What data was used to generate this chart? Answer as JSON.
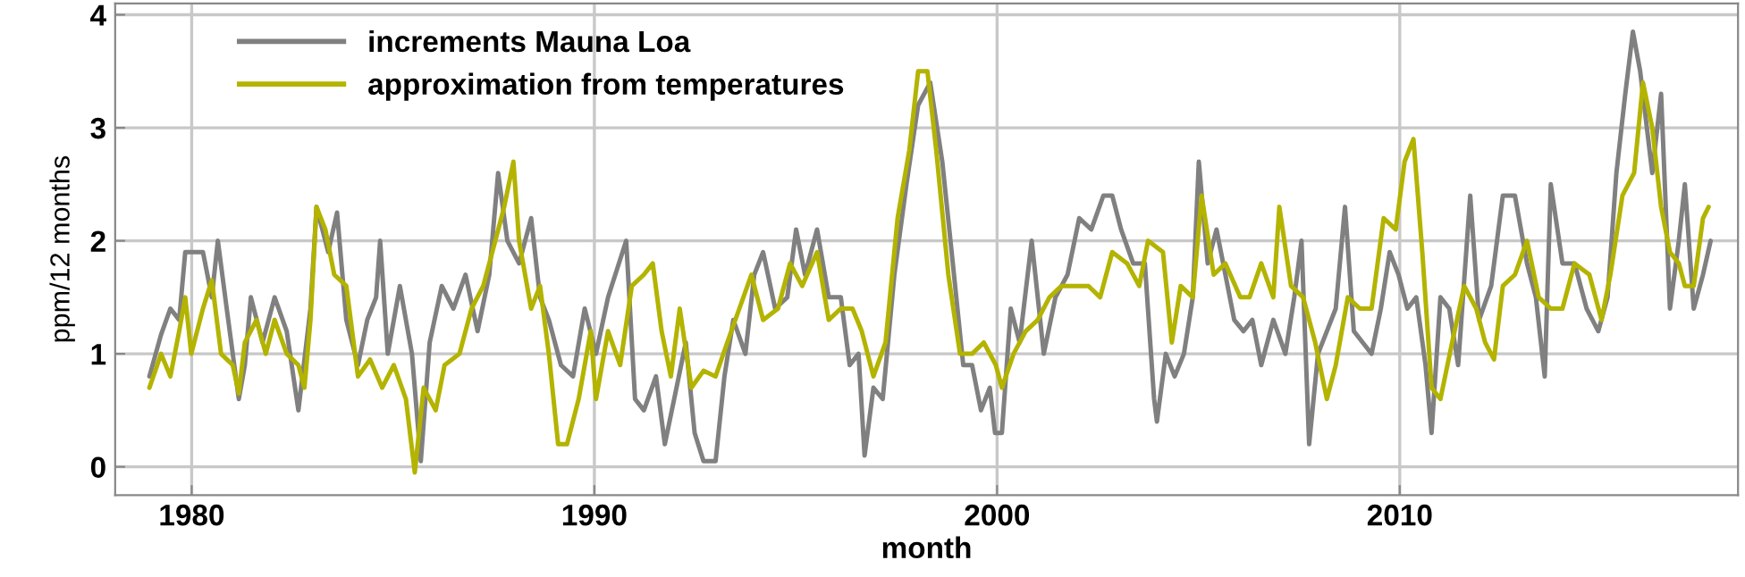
{
  "chart_data": {
    "type": "line",
    "xlabel": "month",
    "ylabel": "ppm/12 months",
    "xlim": [
      1978.1,
      2018.4
    ],
    "xticks": [
      1980,
      1990,
      2000,
      2010
    ],
    "ylim": [
      -0.25,
      4.1
    ],
    "yticks": [
      0,
      1,
      2,
      3,
      4
    ],
    "grid": true,
    "legend": "top left",
    "marker": "none",
    "line_style": "solid",
    "series": [
      {
        "name": "increments Mauna Loa",
        "color": "#808080",
        "x": [
          1978.95,
          1979.24,
          1979.47,
          1979.69,
          1979.84,
          1980.28,
          1980.5,
          1980.65,
          1980.87,
          1981.17,
          1981.32,
          1981.47,
          1981.76,
          1982.06,
          1982.36,
          1982.65,
          1982.95,
          1983.1,
          1983.39,
          1983.61,
          1983.84,
          1984.13,
          1984.36,
          1984.58,
          1984.68,
          1984.87,
          1985.17,
          1985.47,
          1985.69,
          1985.91,
          1986.21,
          1986.5,
          1986.8,
          1987.1,
          1987.39,
          1987.61,
          1987.84,
          1988.13,
          1988.43,
          1988.65,
          1988.87,
          1989.17,
          1989.47,
          1989.76,
          1990.04,
          1990.34,
          1990.79,
          1991.01,
          1991.23,
          1991.53,
          1991.75,
          1992.04,
          1992.27,
          1992.49,
          1992.71,
          1993.01,
          1993.23,
          1993.45,
          1993.75,
          1993.97,
          1994.19,
          1994.49,
          1994.79,
          1995.01,
          1995.23,
          1995.53,
          1995.82,
          1996.12,
          1996.34,
          1996.56,
          1996.71,
          1996.93,
          1997.16,
          1997.45,
          1997.75,
          1998.04,
          1998.34,
          1998.64,
          1998.93,
          1999.16,
          1999.38,
          1999.6,
          1999.82,
          1999.95,
          2000.12,
          2000.34,
          2000.56,
          2000.86,
          2001.16,
          2001.45,
          2001.75,
          2002.04,
          2002.34,
          2002.64,
          2002.86,
          2003.08,
          2003.38,
          2003.67,
          2003.9,
          2003.97,
          2004.19,
          2004.41,
          2004.64,
          2004.86,
          2005.01,
          2005.23,
          2005.45,
          2005.67,
          2005.89,
          2006.12,
          2006.34,
          2006.56,
          2006.86,
          2007.16,
          2007.38,
          2007.56,
          2007.75,
          2007.97,
          2008.19,
          2008.41,
          2008.64,
          2008.86,
          2009.08,
          2009.3,
          2009.53,
          2009.75,
          2009.97,
          2010.19,
          2010.41,
          2010.64,
          2010.79,
          2011.01,
          2011.23,
          2011.45,
          2011.75,
          2011.97,
          2012.27,
          2012.56,
          2012.86,
          2013.16,
          2013.38,
          2013.6,
          2013.75,
          2014.04,
          2014.34,
          2014.64,
          2014.93,
          2015.16,
          2015.38,
          2015.6,
          2015.79,
          2015.97,
          2016.27,
          2016.49,
          2016.71,
          2016.93,
          2017.08,
          2017.3,
          2017.53,
          2017.72
        ],
        "values": [
          0.8,
          1.17,
          1.4,
          1.3,
          1.9,
          1.9,
          1.5,
          2.0,
          1.4,
          0.6,
          0.9,
          1.5,
          1.1,
          1.5,
          1.2,
          0.5,
          1.4,
          2.3,
          1.9,
          2.25,
          1.3,
          0.9,
          1.3,
          1.5,
          2.0,
          1.0,
          1.6,
          1.0,
          0.05,
          1.1,
          1.6,
          1.4,
          1.7,
          1.2,
          1.7,
          2.6,
          2.0,
          1.8,
          2.2,
          1.5,
          1.3,
          0.9,
          0.8,
          1.4,
          1.0,
          1.5,
          2.0,
          0.6,
          0.5,
          0.8,
          0.2,
          0.7,
          1.1,
          0.3,
          0.05,
          0.05,
          0.8,
          1.3,
          1.0,
          1.7,
          1.9,
          1.4,
          1.5,
          2.1,
          1.7,
          2.1,
          1.5,
          1.5,
          0.9,
          1.0,
          0.1,
          0.7,
          0.6,
          1.7,
          2.5,
          3.2,
          3.4,
          2.7,
          1.7,
          0.9,
          0.9,
          0.5,
          0.7,
          0.3,
          0.3,
          1.4,
          1.1,
          2.0,
          1.0,
          1.5,
          1.7,
          2.2,
          2.1,
          2.4,
          2.4,
          2.1,
          1.8,
          1.8,
          0.6,
          0.4,
          1.0,
          0.8,
          1.0,
          1.5,
          2.7,
          1.8,
          2.1,
          1.7,
          1.3,
          1.2,
          1.3,
          0.9,
          1.3,
          1.0,
          1.5,
          2.0,
          0.2,
          1.0,
          1.2,
          1.4,
          2.3,
          1.2,
          1.1,
          1.0,
          1.4,
          1.9,
          1.7,
          1.4,
          1.5,
          0.9,
          0.3,
          1.5,
          1.4,
          0.9,
          2.4,
          1.3,
          1.6,
          2.4,
          2.4,
          1.8,
          1.5,
          0.8,
          2.5,
          1.8,
          1.8,
          1.4,
          1.2,
          1.5,
          2.6,
          3.3,
          3.85,
          3.5,
          2.6,
          3.3,
          1.4,
          2.0,
          2.5,
          1.4,
          1.7,
          2.0
        ]
      },
      {
        "name": "approximation from temperatures",
        "color": "#b3b300",
        "x": [
          1978.95,
          1979.24,
          1979.47,
          1979.69,
          1979.84,
          1979.99,
          1980.28,
          1980.5,
          1980.73,
          1981.02,
          1981.17,
          1981.32,
          1981.61,
          1981.84,
          1982.06,
          1982.36,
          1982.65,
          1982.8,
          1982.95,
          1983.1,
          1983.32,
          1983.54,
          1983.84,
          1984.13,
          1984.43,
          1984.73,
          1985.02,
          1985.32,
          1985.54,
          1985.76,
          1986.06,
          1986.28,
          1986.65,
          1986.95,
          1987.24,
          1987.54,
          1987.76,
          1987.99,
          1988.13,
          1988.43,
          1988.65,
          1988.87,
          1989.1,
          1989.32,
          1989.61,
          1989.91,
          1990.04,
          1990.34,
          1990.64,
          1990.93,
          1991.23,
          1991.45,
          1991.67,
          1991.9,
          1992.12,
          1992.41,
          1992.71,
          1993.01,
          1993.3,
          1993.6,
          1993.9,
          1994.19,
          1994.56,
          1994.86,
          1995.16,
          1995.53,
          1995.82,
          1996.12,
          1996.41,
          1996.64,
          1996.93,
          1997.23,
          1997.53,
          1997.82,
          1998.04,
          1998.27,
          1998.49,
          1998.79,
          1999.08,
          1999.38,
          1999.67,
          1999.97,
          2000.12,
          2000.41,
          2000.71,
          2001.01,
          2001.3,
          2001.6,
          2001.97,
          2002.27,
          2002.56,
          2002.86,
          2003.23,
          2003.53,
          2003.75,
          2004.12,
          2004.34,
          2004.56,
          2004.86,
          2005.08,
          2005.38,
          2005.67,
          2006.04,
          2006.27,
          2006.56,
          2006.86,
          2007.01,
          2007.3,
          2007.6,
          2007.9,
          2008.19,
          2008.41,
          2008.71,
          2009.01,
          2009.3,
          2009.6,
          2009.9,
          2010.12,
          2010.34,
          2010.56,
          2010.79,
          2011.01,
          2011.3,
          2011.6,
          2011.9,
          2012.12,
          2012.34,
          2012.56,
          2012.86,
          2013.16,
          2013.45,
          2013.75,
          2014.04,
          2014.34,
          2014.71,
          2015.01,
          2015.23,
          2015.53,
          2015.82,
          2016.04,
          2016.27,
          2016.49,
          2016.71,
          2016.93,
          2017.08,
          2017.3,
          2017.53,
          2017.67
        ],
        "values": [
          0.7,
          1.0,
          0.8,
          1.2,
          1.5,
          1.0,
          1.4,
          1.65,
          1.0,
          0.9,
          0.65,
          1.1,
          1.3,
          1.0,
          1.3,
          1.0,
          0.9,
          0.7,
          1.3,
          2.3,
          2.1,
          1.7,
          1.6,
          0.8,
          0.95,
          0.7,
          0.9,
          0.6,
          -0.05,
          0.7,
          0.5,
          0.9,
          1.0,
          1.4,
          1.6,
          2.0,
          2.3,
          2.7,
          2.0,
          1.4,
          1.6,
          1.0,
          0.2,
          0.2,
          0.6,
          1.2,
          0.6,
          1.2,
          0.9,
          1.6,
          1.7,
          1.8,
          1.2,
          0.8,
          1.4,
          0.7,
          0.85,
          0.8,
          1.1,
          1.4,
          1.7,
          1.3,
          1.4,
          1.8,
          1.6,
          1.9,
          1.3,
          1.4,
          1.4,
          1.2,
          0.8,
          1.1,
          2.2,
          2.8,
          3.5,
          3.5,
          2.8,
          1.7,
          1.0,
          1.0,
          1.1,
          0.9,
          0.7,
          1.0,
          1.2,
          1.3,
          1.5,
          1.6,
          1.6,
          1.6,
          1.5,
          1.9,
          1.8,
          1.6,
          2.0,
          1.9,
          1.1,
          1.6,
          1.5,
          2.4,
          1.7,
          1.8,
          1.5,
          1.5,
          1.8,
          1.5,
          2.3,
          1.6,
          1.5,
          1.1,
          0.6,
          0.9,
          1.5,
          1.4,
          1.4,
          2.2,
          2.1,
          2.7,
          2.9,
          1.9,
          0.7,
          0.6,
          1.1,
          1.6,
          1.4,
          1.1,
          0.95,
          1.6,
          1.7,
          2.0,
          1.5,
          1.4,
          1.4,
          1.8,
          1.7,
          1.3,
          1.7,
          2.4,
          2.6,
          3.4,
          3.0,
          2.3,
          1.9,
          1.8,
          1.6,
          1.6,
          2.2,
          2.3
        ]
      }
    ]
  }
}
